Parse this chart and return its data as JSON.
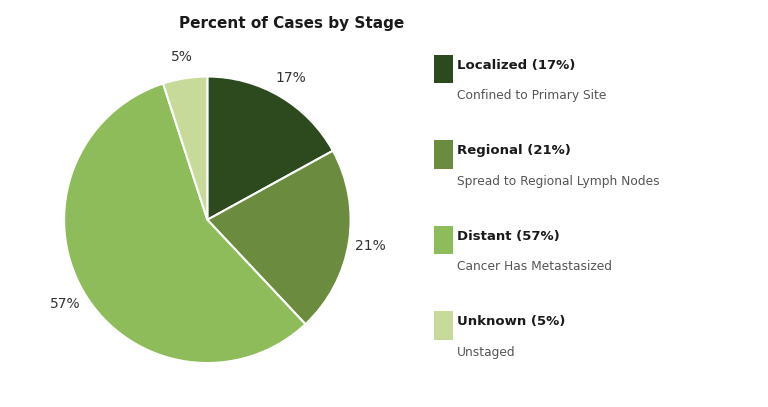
{
  "title": "Percent of Cases by Stage",
  "slices": [
    17,
    21,
    57,
    5
  ],
  "colors": [
    "#2d4a1e",
    "#6b8c3e",
    "#8fbc5a",
    "#c8da9a"
  ],
  "labels": [
    "17%",
    "21%",
    "57%",
    "5%"
  ],
  "legend_titles": [
    "Localized (17%)",
    "Regional (21%)",
    "Distant (57%)",
    "Unknown (5%)"
  ],
  "legend_subtitles": [
    "Confined to Primary Site",
    "Spread to Regional Lymph Nodes",
    "Cancer Has Metastasized",
    "Unstaged"
  ],
  "background_color": "#ffffff",
  "title_fontsize": 11,
  "label_fontsize": 10,
  "startangle": 90
}
